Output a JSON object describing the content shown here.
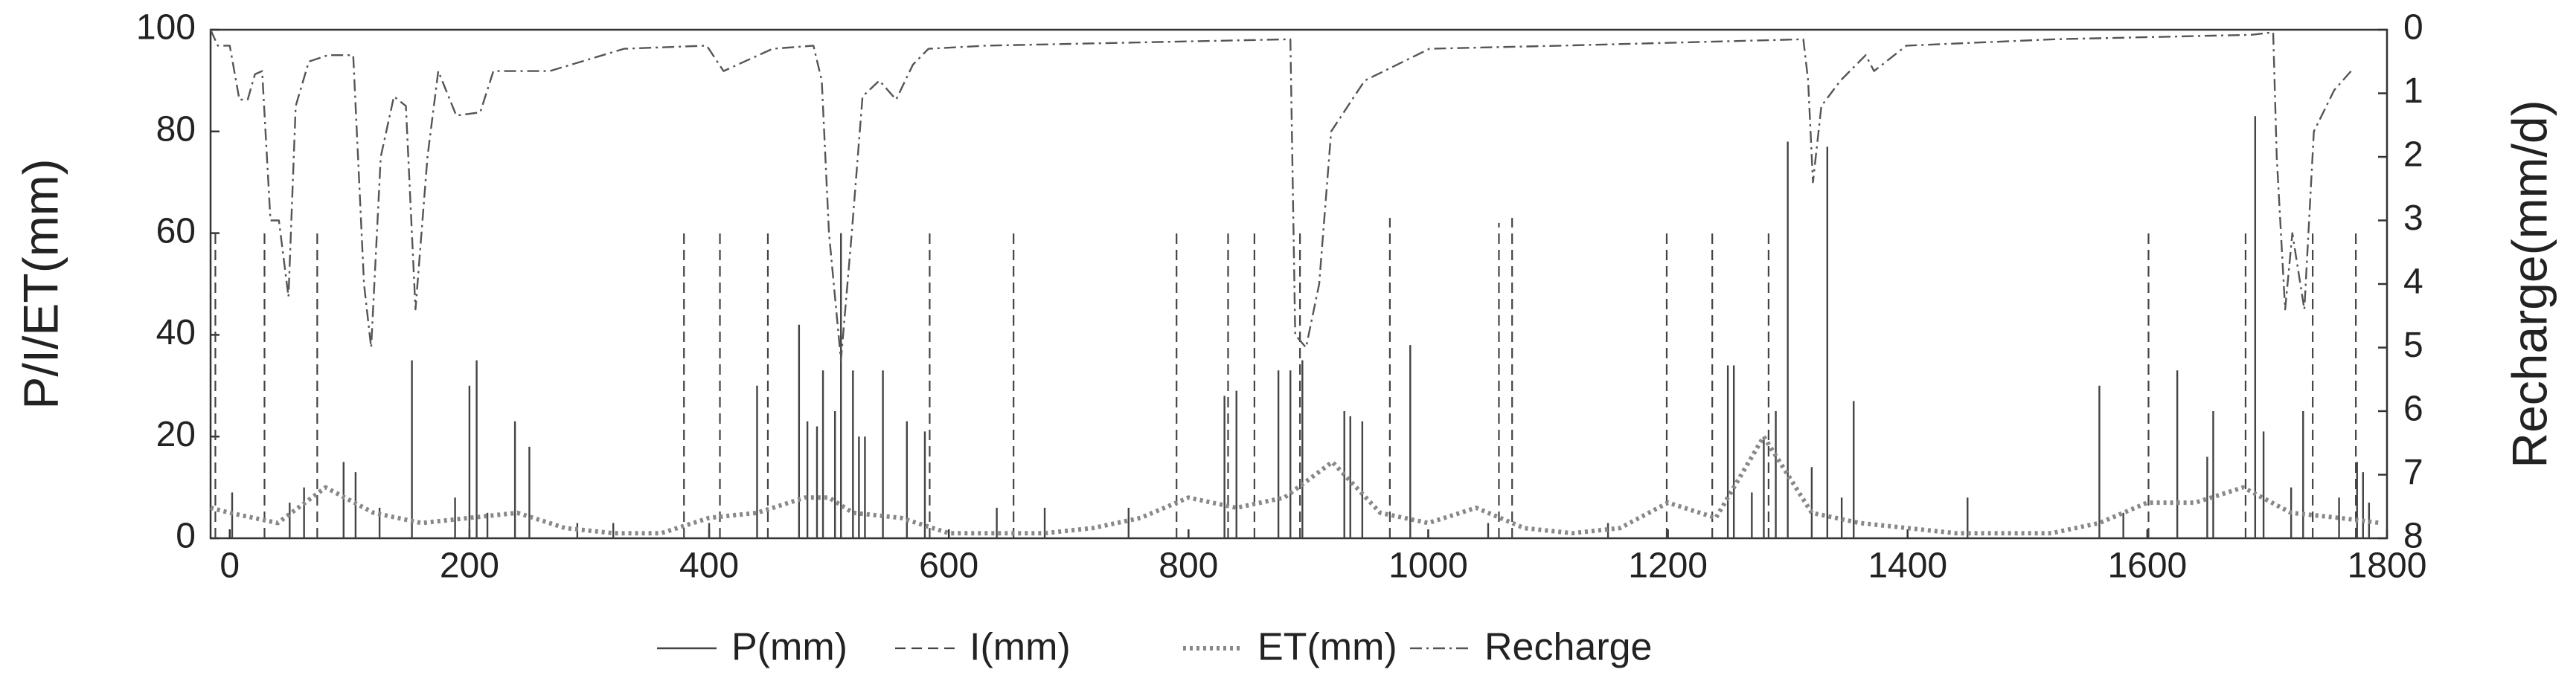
{
  "chart_data": {
    "type": "combo",
    "xlim": [
      -16,
      1800
    ],
    "xticks": [
      0,
      200,
      400,
      600,
      800,
      1000,
      1200,
      1400,
      1600,
      1800
    ],
    "ylim": [
      0,
      100
    ],
    "yticks": [
      0,
      20,
      40,
      60,
      80,
      100
    ],
    "y2lim": [
      8,
      0
    ],
    "y2ticks": [
      0,
      1,
      2,
      3,
      4,
      5,
      6,
      7,
      8
    ],
    "ylabel": "P/I/ET(mm)",
    "y2label": "Recharge(mm/d)",
    "series": [
      {
        "name": "P(mm)",
        "type": "vline",
        "style": "solid",
        "color": "#444444",
        "x": [
          2,
          50,
          62,
          95,
          105,
          125,
          152,
          188,
          200,
          206,
          215,
          238,
          250,
          290,
          320,
          400,
          440,
          475,
          482,
          490,
          495,
          505,
          510,
          520,
          525,
          530,
          545,
          565,
          580,
          640,
          680,
          750,
          830,
          840,
          875,
          885,
          895,
          930,
          935,
          945,
          985,
          1050,
          1150,
          1250,
          1255,
          1270,
          1280,
          1290,
          1300,
          1320,
          1333,
          1345,
          1355,
          1450,
          1560,
          1580,
          1625,
          1650,
          1655,
          1690,
          1697,
          1720,
          1730,
          1760,
          1775,
          1780,
          1785
        ],
        "values": [
          9,
          7,
          10,
          15,
          13,
          6,
          35,
          8,
          30,
          35,
          5,
          23,
          18,
          3,
          3,
          3,
          30,
          42,
          23,
          22,
          33,
          25,
          60,
          33,
          20,
          20,
          33,
          23,
          21,
          6,
          6,
          6,
          28,
          29,
          33,
          33,
          35,
          25,
          24,
          23,
          38,
          3,
          3,
          34,
          34,
          9,
          20,
          25,
          78,
          14,
          77,
          8,
          27,
          8,
          30,
          5,
          33,
          16,
          25,
          83,
          21,
          10,
          25,
          8,
          15,
          13,
          7
        ]
      },
      {
        "name": "I(mm)",
        "type": "vline",
        "style": "dashed",
        "color": "#444444",
        "x": [
          -12,
          29,
          73,
          379,
          409,
          449,
          584,
          654,
          790,
          833,
          855,
          893,
          968,
          1059,
          1070,
          1199,
          1237,
          1284,
          1601,
          1682,
          1738,
          1774
        ],
        "values": [
          60,
          60,
          60,
          60,
          60,
          60,
          60,
          60,
          60,
          60,
          60,
          60,
          63,
          62,
          63,
          60,
          60,
          60,
          60,
          60,
          60,
          60
        ]
      },
      {
        "name": "ET(mm)",
        "type": "line",
        "style": "dotted",
        "color": "#888888",
        "x": [
          -16,
          0,
          40,
          80,
          120,
          160,
          200,
          240,
          280,
          320,
          360,
          400,
          440,
          480,
          500,
          520,
          560,
          600,
          640,
          680,
          720,
          760,
          800,
          840,
          880,
          920,
          960,
          1000,
          1040,
          1080,
          1120,
          1160,
          1200,
          1240,
          1280,
          1320,
          1360,
          1400,
          1440,
          1480,
          1520,
          1560,
          1600,
          1640,
          1680,
          1720,
          1760,
          1795
        ],
        "values": [
          6,
          5,
          3,
          10,
          5,
          3,
          4,
          5,
          2,
          1,
          1,
          4,
          5,
          8,
          8,
          5,
          4,
          1,
          1,
          1,
          2,
          4,
          8,
          6,
          8,
          15,
          5,
          3,
          6,
          2,
          1,
          2,
          7,
          4,
          20,
          5,
          3,
          2,
          1,
          1,
          1,
          3,
          7,
          7,
          10,
          5,
          4,
          3
        ]
      },
      {
        "name": "Recharge",
        "type": "line",
        "style": "dashdot",
        "color": "#555555",
        "axis": "y2",
        "x": [
          -16,
          -10,
          0,
          8,
          15,
          21,
          27,
          34,
          41,
          49,
          55,
          66,
          82,
          103,
          112,
          118,
          126,
          137,
          147,
          155,
          165,
          174,
          189,
          209,
          220,
          267,
          329,
          398,
          412,
          453,
          487,
          494,
          500,
          510,
          519,
          528,
          542,
          556,
          570,
          583,
          631,
          885,
          889,
          898,
          909,
          919,
          947,
          1001,
          1111,
          1313,
          1317,
          1321,
          1328,
          1344,
          1365,
          1372,
          1399,
          1523,
          1687,
          1705,
          1708,
          1715,
          1721,
          1731,
          1739,
          1756,
          1770
        ],
        "values": [
          0,
          0.25,
          0.25,
          1.1,
          1.1,
          0.7,
          0.65,
          3.0,
          3.0,
          4.2,
          1.2,
          0.5,
          0.4,
          0.4,
          4.0,
          5.0,
          2.0,
          1.05,
          1.2,
          4.4,
          2.0,
          0.65,
          1.35,
          1.3,
          0.65,
          0.65,
          0.3,
          0.25,
          0.65,
          0.3,
          0.25,
          0.8,
          3.2,
          5.2,
          3.2,
          1.05,
          0.8,
          1.1,
          0.55,
          0.3,
          0.25,
          0.15,
          4.8,
          5.0,
          4.0,
          1.6,
          0.8,
          0.3,
          0.25,
          0.15,
          0.8,
          2.4,
          1.2,
          0.8,
          0.4,
          0.65,
          0.25,
          0.15,
          0.08,
          0.04,
          2.0,
          4.4,
          3.2,
          4.4,
          1.6,
          0.95,
          0.65
        ]
      }
    ]
  }
}
